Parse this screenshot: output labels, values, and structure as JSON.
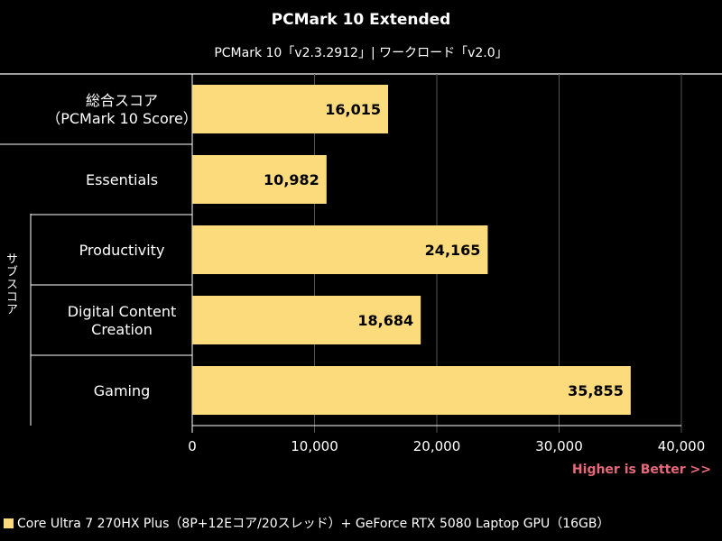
{
  "colors": {
    "bar": "#fcdb7c",
    "background": "#000000",
    "grid": "#555555",
    "higher_is_better": "#e8687a"
  },
  "chart_data": {
    "type": "bar",
    "orientation": "horizontal",
    "title": "PCMark 10 Extended",
    "subtitle": "PCMark 10「v2.3.2912」| ワークロード「v2.0」",
    "group_label": "サブスコア",
    "categories": [
      [
        "総合スコア",
        "（PCMark 10 Score）"
      ],
      [
        "Essentials"
      ],
      [
        "Productivity"
      ],
      [
        "Digital Content",
        "Creation"
      ],
      [
        "Gaming"
      ]
    ],
    "series": [
      {
        "name": "Core Ultra 7 270HX Plus（8P+12Eコア/20スレッド）+ GeForce RTX 5080 Laptop GPU（16GB）",
        "values": [
          16015,
          10982,
          24165,
          18684,
          35855
        ],
        "labels": [
          "16,015",
          "10,982",
          "24,165",
          "18,684",
          "35,855"
        ]
      }
    ],
    "xlim": [
      0,
      40000
    ],
    "xticks": [
      0,
      10000,
      20000,
      30000,
      40000
    ],
    "xtick_labels": [
      "0",
      "10,000",
      "20,000",
      "30,000",
      "40,000"
    ],
    "grid": true,
    "note": "Higher is Better >>",
    "legend_position": "bottom-left"
  }
}
